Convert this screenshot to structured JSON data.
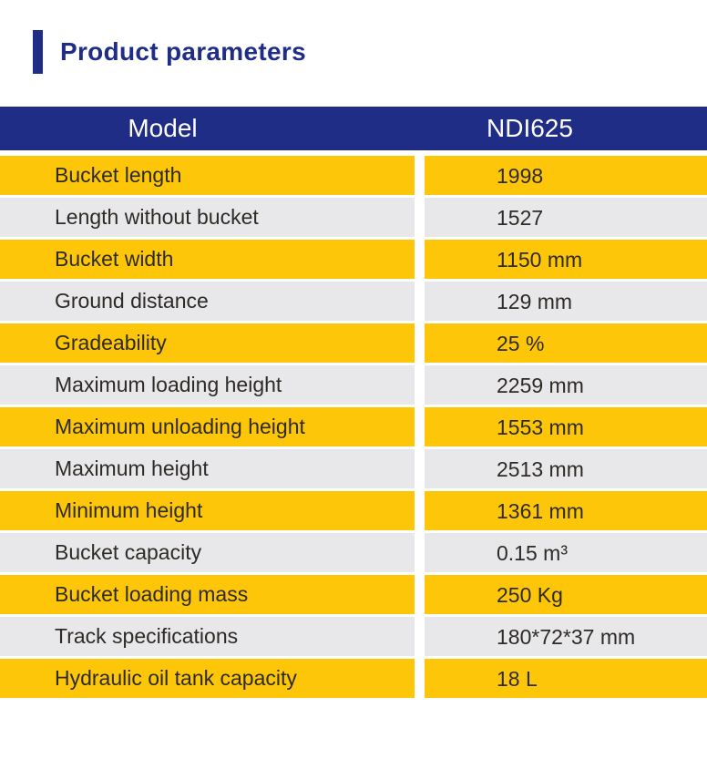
{
  "title": "Product parameters",
  "colors": {
    "navy": "#1F2D87",
    "yellow": "#FDC608",
    "gray": "#E8E7EA"
  },
  "table": {
    "header": {
      "col1": "Model",
      "col2": "NDI625"
    },
    "rows": [
      {
        "label": "Bucket length",
        "value": "1998"
      },
      {
        "label": "Length without bucket",
        "value": "1527"
      },
      {
        "label": "Bucket width",
        "value": "1150 mm"
      },
      {
        "label": "Ground distance",
        "value": "129 mm"
      },
      {
        "label": "Gradeability",
        "value": "25 %"
      },
      {
        "label": "Maximum loading height",
        "value": "2259 mm"
      },
      {
        "label": "Maximum unloading height",
        "value": "1553 mm"
      },
      {
        "label": "Maximum height",
        "value": "2513 mm"
      },
      {
        "label": "Minimum height",
        "value": "1361 mm"
      },
      {
        "label": "Bucket capacity",
        "value": "0.15 m³"
      },
      {
        "label": "Bucket loading mass",
        "value": "250 Kg"
      },
      {
        "label": "Track specifications",
        "value": "180*72*37 mm"
      },
      {
        "label": "Hydraulic oil tank capacity",
        "value": "18 L"
      }
    ]
  }
}
